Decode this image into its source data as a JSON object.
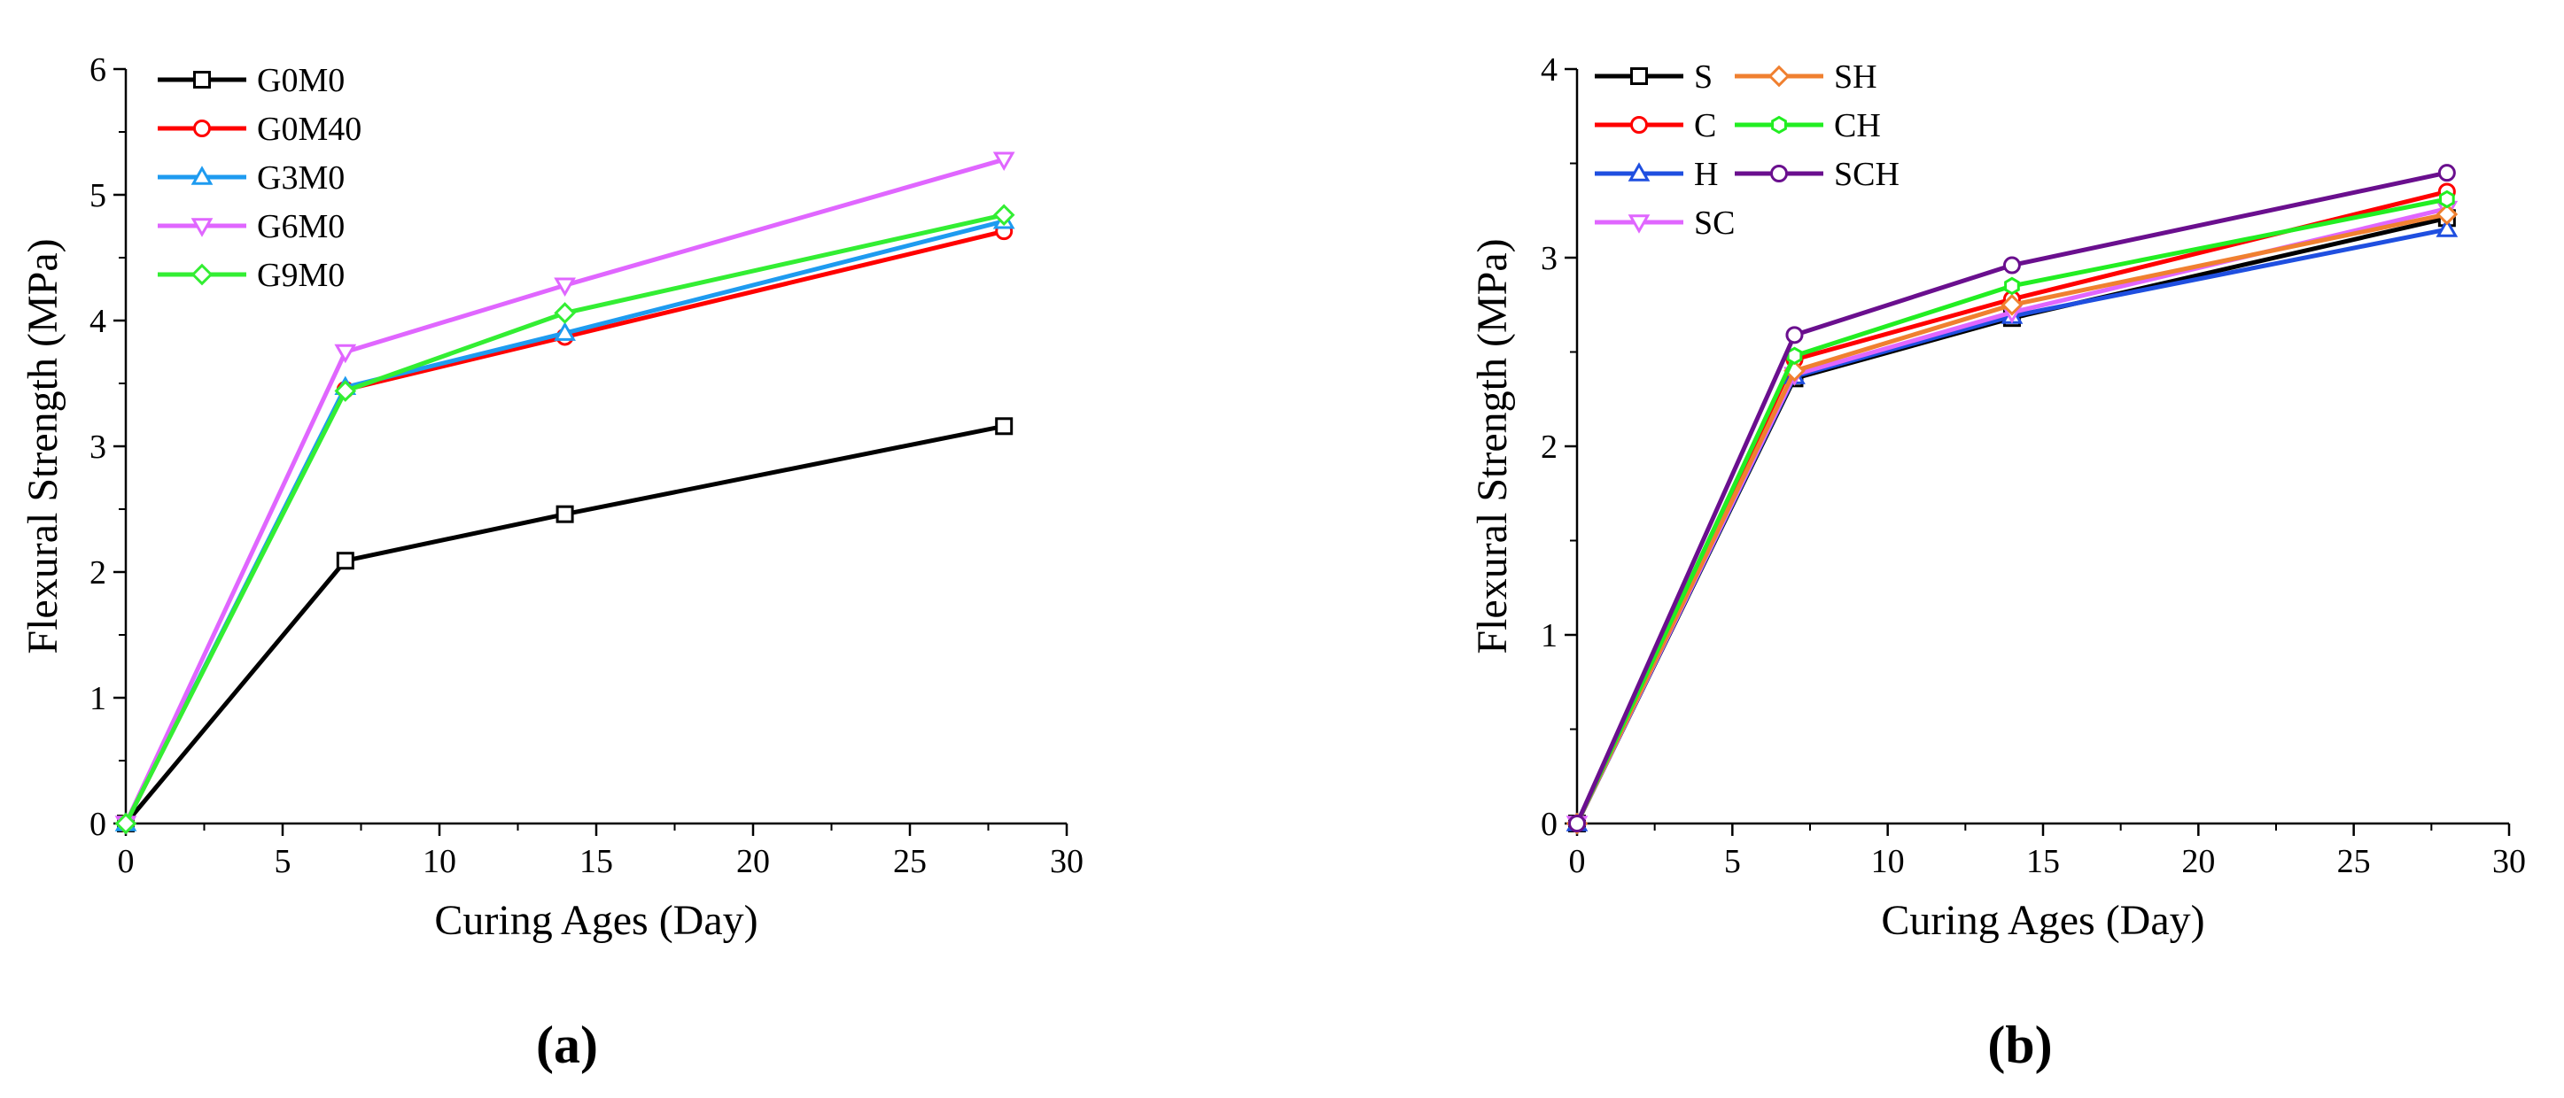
{
  "chart_data": [
    {
      "type": "line",
      "panel_label": "(a)",
      "title": "",
      "xlabel": "Curing Ages (Day)",
      "ylabel": "Flexural Strength (MPa)",
      "xlim": [
        0,
        30
      ],
      "ylim": [
        0,
        6
      ],
      "xticks": [
        0,
        5,
        10,
        15,
        20,
        25,
        30
      ],
      "yticks": [
        0,
        1,
        2,
        3,
        4,
        5,
        6
      ],
      "grid": false,
      "legend_position": "top-left",
      "x": [
        0,
        7,
        14,
        28
      ],
      "series": [
        {
          "name": "G0M0",
          "color": "#000000",
          "marker": "square",
          "values": [
            0,
            2.09,
            2.46,
            3.16
          ]
        },
        {
          "name": "G0M40",
          "color": "#ff0000",
          "marker": "circle",
          "values": [
            0,
            3.45,
            3.87,
            4.71
          ]
        },
        {
          "name": "G3M0",
          "color": "#1e9bf0",
          "marker": "triangle-up",
          "values": [
            0,
            3.47,
            3.9,
            4.79
          ]
        },
        {
          "name": "G6M0",
          "color": "#e066ff",
          "marker": "triangle-down",
          "values": [
            0,
            3.75,
            4.28,
            5.28
          ]
        },
        {
          "name": "G9M0",
          "color": "#33ee33",
          "marker": "diamond",
          "values": [
            0,
            3.44,
            4.06,
            4.84
          ]
        }
      ]
    },
    {
      "type": "line",
      "panel_label": "(b)",
      "title": "",
      "xlabel": "Curing Ages (Day)",
      "ylabel": "Flexural Strength (MPa)",
      "xlim": [
        0,
        30
      ],
      "ylim": [
        0,
        4
      ],
      "xticks": [
        0,
        5,
        10,
        15,
        20,
        25,
        30
      ],
      "yticks": [
        0,
        1,
        2,
        3,
        4
      ],
      "grid": false,
      "legend_position": "top-left",
      "x": [
        0,
        7,
        14,
        28
      ],
      "series": [
        {
          "name": "S",
          "color": "#000000",
          "marker": "square",
          "values": [
            0,
            2.36,
            2.68,
            3.21
          ]
        },
        {
          "name": "C",
          "color": "#ff0000",
          "marker": "circle",
          "values": [
            0,
            2.46,
            2.78,
            3.35
          ]
        },
        {
          "name": "H",
          "color": "#1f4fe0",
          "marker": "triangle-up",
          "values": [
            0,
            2.37,
            2.69,
            3.15
          ]
        },
        {
          "name": "SC",
          "color": "#e066ff",
          "marker": "triangle-down",
          "values": [
            0,
            2.38,
            2.71,
            3.26
          ]
        },
        {
          "name": "SH",
          "color": "#f08030",
          "marker": "diamond",
          "values": [
            0,
            2.4,
            2.75,
            3.23
          ]
        },
        {
          "name": "CH",
          "color": "#22ee22",
          "marker": "hexagon",
          "values": [
            0,
            2.48,
            2.85,
            3.31
          ]
        },
        {
          "name": "SCH",
          "color": "#6a0f8e",
          "marker": "circle",
          "values": [
            0,
            2.59,
            2.96,
            3.45
          ]
        }
      ]
    }
  ]
}
